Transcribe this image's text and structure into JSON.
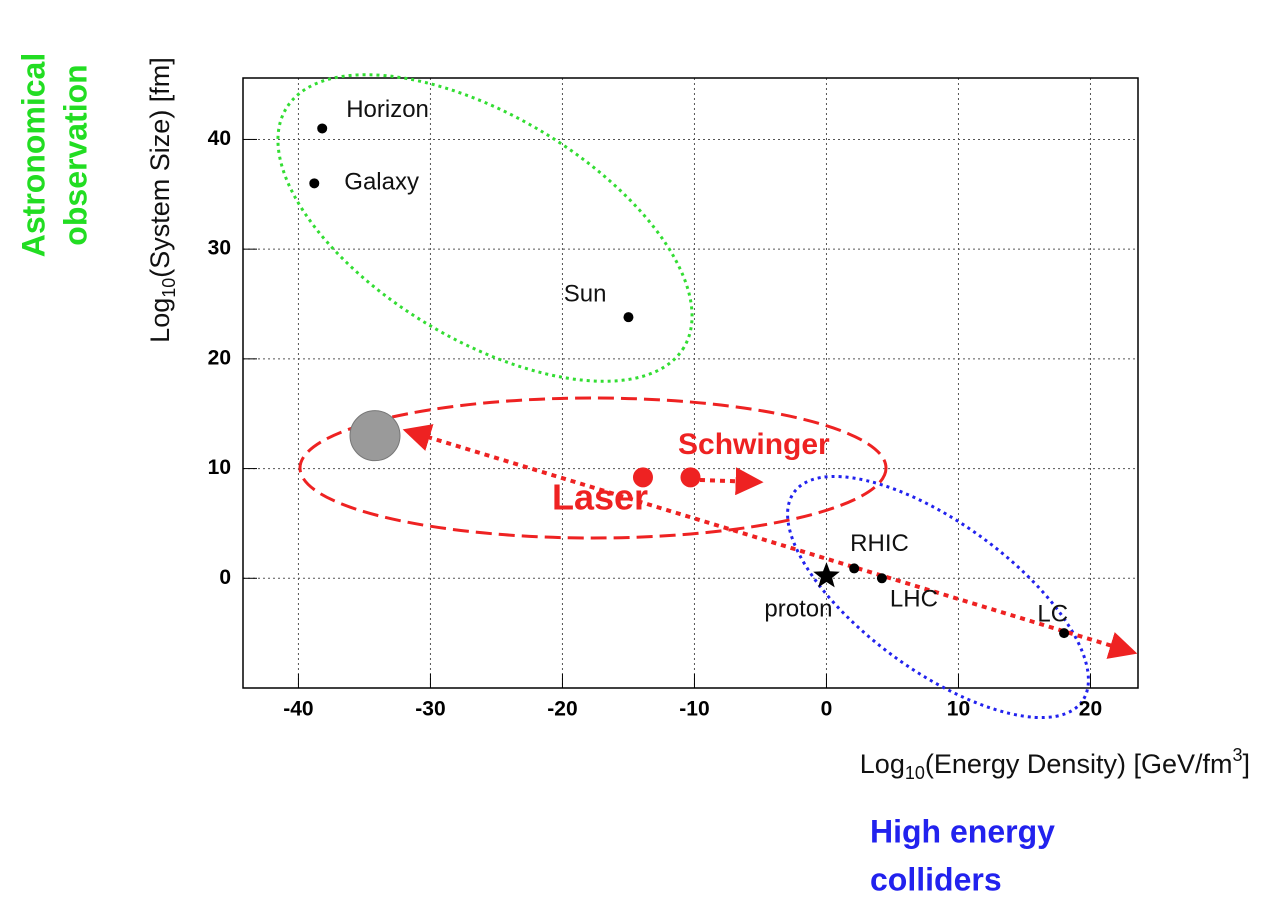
{
  "chart_data": {
    "type": "scatter",
    "x_label": {
      "main": "Log",
      "sub": "10",
      "rest": "(Energy Density) [GeV/fm",
      "sup": "3",
      "end": "]"
    },
    "y_label": {
      "main": "Log",
      "sub": "10",
      "rest": "(System Size) [fm]"
    },
    "annotations": {
      "astronomical": [
        "Astronomical",
        "observation"
      ],
      "colliders": [
        "High energy",
        "colliders"
      ],
      "laser": "Laser",
      "schwinger": "Schwinger"
    },
    "xlim": [
      -44.2,
      23.6
    ],
    "ylim": [
      -10,
      45.6
    ],
    "xticks": [
      -40,
      -30,
      -20,
      -10,
      0,
      10,
      20
    ],
    "yticks": [
      0,
      10,
      20,
      30,
      40
    ],
    "grid": true,
    "series": [
      {
        "marker": "circle",
        "color": "#000000",
        "x": [
          -38.2,
          -38.8,
          -15,
          2.1,
          4.2,
          18
        ],
        "values": [
          41,
          36,
          23.8,
          0.9,
          0,
          -5
        ],
        "labels": [
          "Horizon",
          "Galaxy",
          "Sun",
          "RHIC",
          "LHC",
          "LC"
        ]
      },
      {
        "marker": "star",
        "color": "#000000",
        "x": [
          0
        ],
        "values": [
          0.2
        ],
        "labels": [
          "proton"
        ]
      },
      {
        "marker": "big-circle",
        "color": "#ee2222",
        "x": [
          -13.9,
          -10.3
        ],
        "values": [
          9.2,
          9.2
        ]
      },
      {
        "marker": "moon",
        "color": "#9a9a9a",
        "x": [
          -34.2
        ],
        "values": [
          13
        ]
      }
    ]
  }
}
